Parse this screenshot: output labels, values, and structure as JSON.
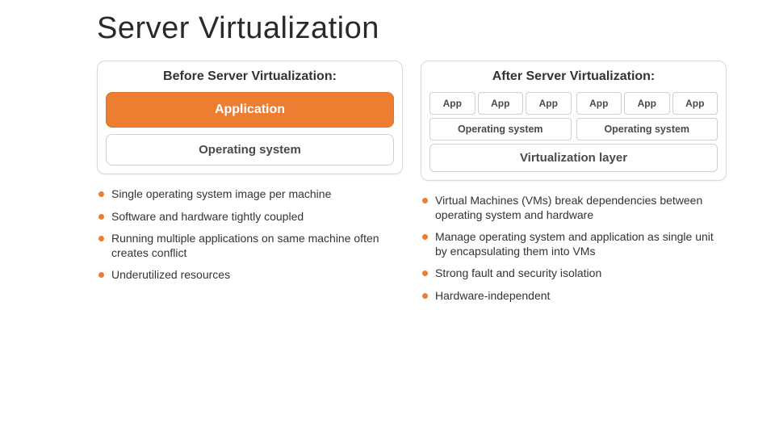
{
  "title": "Server Virtualization",
  "colors": {
    "orange": "#ed7d31",
    "blue": "#5b9bd5",
    "panel_border": "#d8d8d8",
    "cell_border": "#cfcfcf",
    "text": "#333333",
    "bg": "#ffffff"
  },
  "before": {
    "header": "Before Server Virtualization:",
    "app_block": "Application",
    "os_block": "Operating system",
    "bullets": [
      "Single operating system image per machine",
      "Software and hardware tightly coupled",
      "Running multiple applications on same machine often creates conflict",
      "Underutilized resources"
    ]
  },
  "after": {
    "header": "After Server Virtualization:",
    "app_label": "App",
    "os_label": "Operating system",
    "virt_label": "Virtualization layer",
    "vm_count": 2,
    "apps_per_vm": 3,
    "bullets": [
      "Virtual Machines (VMs) break dependencies between operating system and hardware",
      "Manage operating system and application as single unit by encapsulating them into VMs",
      "Strong fault and security isolation",
      "Hardware-independent"
    ]
  }
}
